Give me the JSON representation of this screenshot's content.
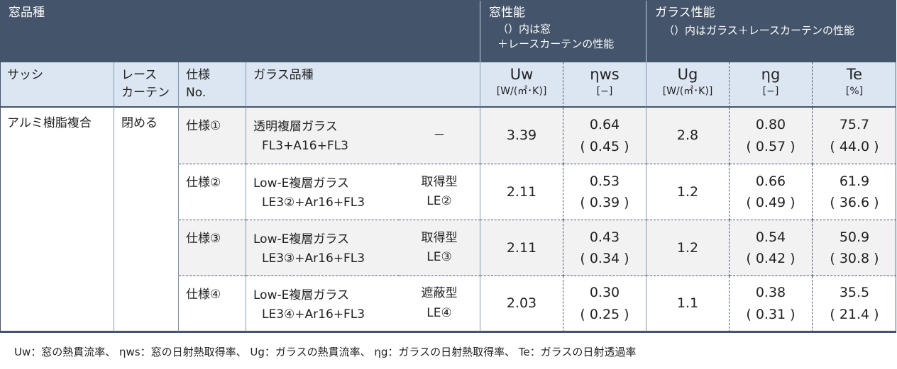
{
  "header": {
    "window_type": "窓品種",
    "window_performance": {
      "title": "窓性能",
      "note1": "（）内は窓",
      "note2": "＋レースカーテンの性能"
    },
    "glass_performance": {
      "title": "ガラス性能",
      "note": "（）内はガラス＋レースカーテンの性能"
    }
  },
  "columns": {
    "sash": "サッシ",
    "curtain": "レース\nカーテン",
    "spec": "仕様\nNo.",
    "glass": "ガラス品種",
    "uw": {
      "label": "Uw",
      "unit": "[W/(㎡･K)]"
    },
    "nws": {
      "label": "ηws",
      "unit": "[−]"
    },
    "ug": {
      "label": "Ug",
      "unit": "[W/(㎡･K)]"
    },
    "ng": {
      "label": "ηg",
      "unit": "[−]"
    },
    "te": {
      "label": "Te",
      "unit": "[%]"
    }
  },
  "sash": "アルミ樹脂複合",
  "curtain": "閉める",
  "rows": [
    {
      "spec": "仕様①",
      "glass_name": "透明複層ガラス",
      "glass_code": "FL3+A16+FL3",
      "glass_type": "－",
      "uw": "3.39",
      "nws": "0.64",
      "nws_curtain": "( 0.45 )",
      "ug": "2.8",
      "ng": "0.80",
      "ng_curtain": "( 0.57 )",
      "te": "75.7",
      "te_curtain": "( 44.0 )"
    },
    {
      "spec": "仕様②",
      "glass_name": "Low-E複層ガラス",
      "glass_code": "LE3②+Ar16+FL3",
      "glass_type": "取得型\nLE②",
      "uw": "2.11",
      "nws": "0.53",
      "nws_curtain": "( 0.39 )",
      "ug": "1.2",
      "ng": "0.66",
      "ng_curtain": "( 0.49 )",
      "te": "61.9",
      "te_curtain": "( 36.6 )"
    },
    {
      "spec": "仕様③",
      "glass_name": "Low-E複層ガラス",
      "glass_code": "LE3③+Ar16+FL3",
      "glass_type": "取得型\nLE③",
      "uw": "2.11",
      "nws": "0.43",
      "nws_curtain": "( 0.34 )",
      "ug": "1.2",
      "ng": "0.54",
      "ng_curtain": "( 0.42 )",
      "te": "50.9",
      "te_curtain": "( 30.8 )"
    },
    {
      "spec": "仕様④",
      "glass_name": "Low-E複層ガラス",
      "glass_code": "LE3④+Ar16+FL3",
      "glass_type": "遮蔽型\nLE④",
      "uw": "2.03",
      "nws": "0.30",
      "nws_curtain": "( 0.25 )",
      "ug": "1.1",
      "ng": "0.38",
      "ng_curtain": "( 0.31 )",
      "te": "35.5",
      "te_curtain": "( 21.4 )"
    }
  ],
  "footnote": "Uw：窓の熱貫流率、 ηws：窓の日射熱取得率、 Ug：ガラスの熱貫流率、 ηg：ガラスの日射熱取得率、 Te：ガラスの日射透過率"
}
